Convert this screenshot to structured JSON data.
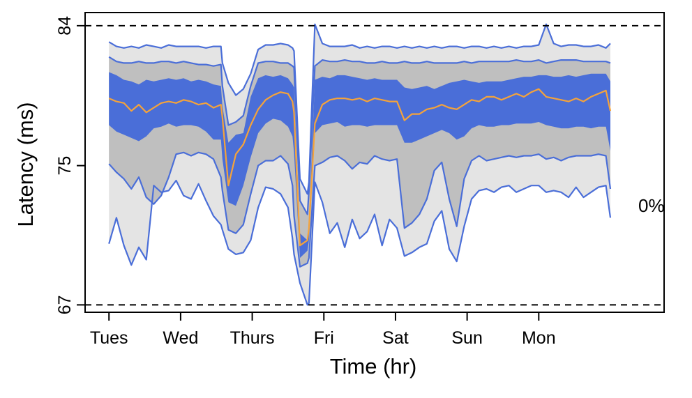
{
  "chart_data": {
    "type": "area",
    "title": "",
    "xlabel": "Time (hr)",
    "ylabel": "Latency (ms)",
    "y_scale": "log",
    "ylim": [
      66.6,
      84.9
    ],
    "xlim": [
      -8,
      186
    ],
    "y_ticks": [
      84,
      75,
      67
    ],
    "y_reference_lines": [
      84,
      67
    ],
    "x_ticks": [
      {
        "value": 0,
        "label": "Tues"
      },
      {
        "value": 24,
        "label": "Wed"
      },
      {
        "value": 48,
        "label": "Thurs"
      },
      {
        "value": 72,
        "label": "Fri"
      },
      {
        "value": 96,
        "label": "Sat"
      },
      {
        "value": 120,
        "label": "Sun"
      },
      {
        "value": 144,
        "label": "Mon"
      }
    ],
    "annotation": "0%",
    "colors": {
      "outer_band": "#e4e4e4",
      "middle_band": "#bfbfbf",
      "inner_band": "#4a6ed8",
      "percentile_line": "#4a6ed8",
      "median_line": "#f5a33a"
    },
    "x": [
      0,
      2.5,
      5,
      7.5,
      10,
      12.5,
      15,
      17.5,
      20,
      22.5,
      25,
      27.5,
      30,
      32.5,
      35,
      37.5,
      38,
      40,
      42.5,
      45,
      47.5,
      50,
      52.5,
      55,
      57.5,
      60,
      61.5,
      62,
      64,
      66.5,
      67,
      69,
      71.5,
      74,
      76.5,
      79,
      81.5,
      84,
      86.5,
      89,
      91.5,
      94,
      96.5,
      99,
      101.5,
      104,
      106.5,
      109,
      111.5,
      114,
      116.5,
      119,
      121.5,
      124,
      126.5,
      129,
      131.5,
      134,
      136.5,
      139,
      141.5,
      144,
      146.5,
      149,
      151.5,
      154,
      156.5,
      159,
      161.5,
      164,
      166.5,
      168
    ],
    "series": [
      {
        "name": "max",
        "values": [
          82.9,
          82.6,
          82.5,
          82.6,
          82.5,
          82.7,
          82.6,
          82.5,
          82.7,
          82.6,
          82.6,
          82.6,
          82.6,
          82.5,
          82.6,
          82.6,
          81.5,
          80.2,
          79.4,
          79.8,
          80.8,
          82.4,
          82.7,
          82.7,
          82.8,
          82.7,
          82.5,
          82.3,
          74.2,
          73.3,
          74.0,
          84.1,
          82.8,
          82.6,
          82.6,
          82.6,
          82.7,
          82.5,
          82.6,
          82.5,
          82.6,
          82.6,
          82.5,
          82.6,
          82.5,
          82.6,
          82.5,
          82.6,
          82.5,
          82.6,
          82.6,
          82.5,
          82.6,
          82.6,
          82.5,
          82.6,
          82.5,
          82.6,
          82.5,
          82.6,
          82.6,
          82.7,
          84.1,
          82.8,
          82.6,
          82.7,
          82.7,
          82.6,
          82.6,
          82.7,
          82.5,
          82.8
        ]
      },
      {
        "name": "p95",
        "values": [
          81.9,
          81.6,
          81.5,
          81.5,
          81.6,
          81.5,
          81.5,
          81.6,
          81.6,
          81.5,
          81.6,
          81.5,
          81.4,
          81.4,
          81.3,
          81.4,
          80.0,
          77.5,
          77.7,
          78.1,
          80.0,
          81.5,
          81.6,
          81.6,
          81.5,
          81.5,
          81.3,
          81.2,
          72.9,
          72.1,
          73.5,
          81.3,
          81.7,
          81.6,
          81.6,
          81.7,
          81.6,
          81.6,
          81.5,
          81.5,
          81.6,
          81.5,
          81.5,
          81.6,
          81.5,
          81.5,
          81.6,
          81.5,
          81.5,
          81.5,
          81.5,
          81.6,
          81.5,
          81.6,
          81.6,
          81.6,
          81.6,
          81.6,
          81.7,
          81.6,
          81.6,
          81.7,
          81.5,
          81.6,
          81.7,
          81.7,
          81.7,
          81.6,
          81.6,
          81.6,
          81.6,
          81.5
        ]
      },
      {
        "name": "p75",
        "values": [
          80.9,
          80.7,
          80.4,
          80.3,
          80.1,
          80.4,
          80.3,
          80.4,
          80.5,
          80.4,
          80.5,
          80.3,
          80.4,
          80.3,
          80.1,
          80.0,
          78.7,
          76.4,
          76.9,
          77.0,
          79.3,
          80.5,
          80.7,
          80.6,
          80.7,
          80.5,
          80.1,
          79.9,
          71.0,
          70.6,
          71.6,
          80.4,
          80.6,
          80.5,
          80.7,
          80.7,
          80.6,
          80.5,
          80.4,
          80.5,
          80.4,
          80.4,
          80.4,
          79.9,
          79.8,
          79.9,
          80.0,
          79.8,
          80.0,
          80.2,
          80.3,
          80.4,
          80.3,
          80.2,
          80.3,
          80.3,
          80.3,
          80.4,
          80.5,
          80.6,
          80.6,
          80.7,
          80.7,
          80.6,
          80.6,
          80.7,
          80.6,
          80.7,
          80.8,
          80.8,
          80.8,
          80.3
        ]
      },
      {
        "name": "p50",
        "values": [
          79.2,
          79.0,
          78.9,
          78.4,
          78.8,
          78.3,
          78.6,
          78.9,
          79.0,
          78.9,
          79.1,
          79.0,
          78.8,
          78.9,
          78.6,
          78.8,
          78.0,
          73.8,
          75.7,
          76.3,
          77.5,
          78.5,
          79.1,
          79.4,
          79.6,
          79.5,
          79.0,
          78.3,
          70.3,
          70.6,
          71.3,
          77.6,
          78.8,
          79.1,
          79.2,
          79.2,
          79.1,
          79.2,
          79.0,
          79.2,
          79.1,
          79.0,
          79.0,
          77.8,
          78.2,
          78.2,
          78.5,
          78.6,
          78.8,
          78.6,
          78.5,
          78.8,
          79.1,
          79.0,
          79.3,
          79.3,
          79.1,
          79.3,
          79.5,
          79.3,
          79.6,
          79.8,
          79.3,
          79.2,
          79.1,
          79.0,
          79.2,
          79.0,
          79.3,
          79.5,
          79.7,
          78.4
        ]
      },
      {
        "name": "p25",
        "values": [
          77.5,
          77.1,
          76.9,
          76.7,
          76.5,
          76.8,
          77.3,
          77.4,
          77.6,
          77.4,
          77.5,
          77.5,
          77.4,
          77.1,
          76.6,
          76.6,
          75.4,
          72.8,
          72.6,
          73.8,
          75.5,
          77.0,
          77.6,
          77.9,
          77.8,
          77.4,
          76.8,
          75.8,
          69.6,
          70.0,
          70.6,
          77.0,
          77.5,
          77.6,
          77.7,
          77.4,
          77.5,
          77.5,
          77.4,
          77.5,
          77.5,
          77.5,
          77.5,
          76.4,
          76.4,
          76.6,
          76.8,
          77.0,
          77.2,
          77.0,
          76.6,
          76.8,
          77.3,
          77.5,
          77.4,
          77.4,
          77.5,
          77.5,
          77.6,
          77.6,
          77.6,
          77.7,
          77.5,
          77.4,
          77.3,
          77.3,
          77.4,
          77.4,
          77.3,
          77.4,
          77.4,
          75.9
        ]
      },
      {
        "name": "p5",
        "values": [
          75.1,
          74.6,
          74.2,
          73.6,
          74.3,
          73.1,
          72.7,
          73.2,
          74.3,
          75.7,
          75.8,
          75.6,
          75.8,
          75.7,
          75.4,
          74.3,
          73.5,
          71.2,
          71.0,
          71.5,
          73.3,
          75.0,
          75.3,
          75.3,
          75.6,
          75.1,
          73.8,
          72.0,
          69.1,
          69.3,
          69.6,
          75.0,
          75.2,
          75.5,
          75.6,
          75.3,
          74.8,
          75.2,
          75.1,
          75.6,
          75.4,
          75.3,
          75.4,
          71.3,
          71.6,
          72.1,
          73.0,
          74.7,
          75.2,
          73.0,
          71.4,
          74.2,
          75.3,
          75.6,
          75.3,
          75.4,
          75.5,
          75.6,
          75.5,
          75.6,
          75.6,
          75.7,
          75.4,
          75.5,
          75.3,
          75.5,
          75.6,
          75.6,
          75.6,
          75.7,
          75.6,
          73.6
        ]
      },
      {
        "name": "min",
        "values": [
          70.4,
          71.9,
          70.3,
          69.2,
          70.2,
          69.5,
          73.8,
          73.4,
          73.5,
          74.1,
          73.2,
          73.0,
          73.9,
          72.9,
          72.0,
          71.5,
          71.2,
          70.1,
          69.8,
          69.9,
          70.6,
          72.5,
          73.7,
          73.6,
          73.3,
          72.5,
          70.7,
          69.8,
          68.2,
          67.0,
          67.1,
          74.0,
          72.8,
          71.0,
          71.6,
          70.2,
          71.8,
          70.7,
          71.1,
          72.1,
          70.3,
          71.8,
          71.3,
          69.7,
          69.9,
          70.2,
          70.4,
          71.7,
          72.3,
          70.1,
          69.4,
          71.4,
          73.0,
          73.5,
          73.6,
          73.4,
          73.7,
          73.8,
          73.4,
          73.6,
          73.8,
          73.8,
          73.4,
          73.5,
          73.4,
          73.1,
          73.7,
          73.1,
          73.4,
          73.7,
          73.8,
          71.9
        ]
      }
    ]
  }
}
